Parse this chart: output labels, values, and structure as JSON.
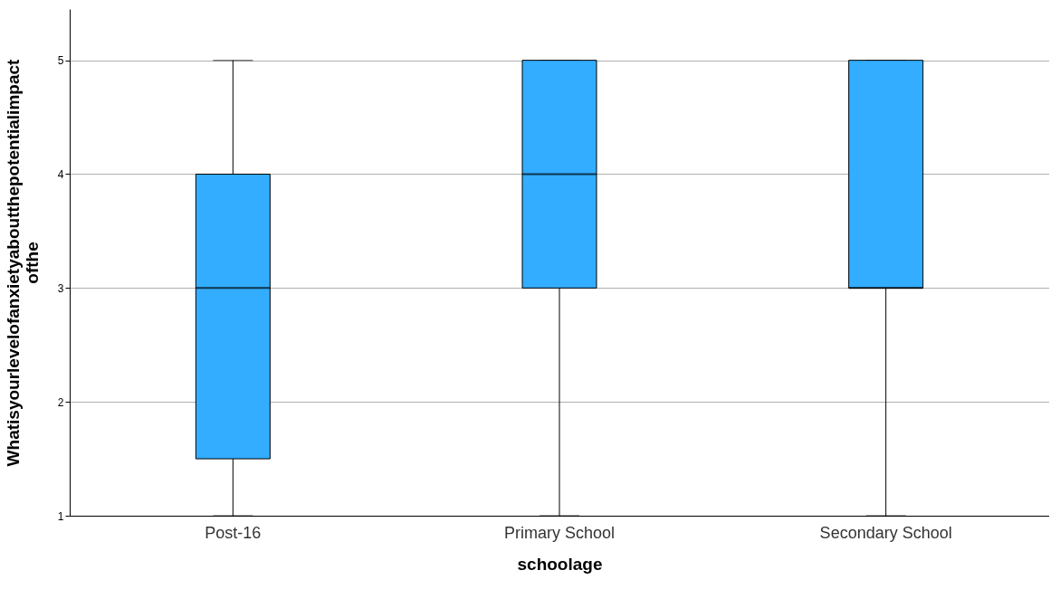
{
  "chart_data": {
    "type": "box",
    "xlabel": "schoolage",
    "ylabel": "Whatisyourlevelofanxietyaboutthepotentialimpact\nofthe",
    "categories": [
      "Post-16",
      "Primary School",
      "Secondary School"
    ],
    "color": "#33adff",
    "boxes": [
      {
        "low": 1,
        "q1": 1.5,
        "median": 3,
        "q3": 4,
        "high": 5
      },
      {
        "low": 1,
        "q1": 3,
        "median": 4,
        "q3": 5,
        "high": 5
      },
      {
        "low": 1,
        "q1": 3,
        "median": 3,
        "q3": 5,
        "high": 5
      }
    ],
    "ylim": [
      1,
      5.45
    ],
    "yticks": [
      1,
      2,
      3,
      4,
      5
    ],
    "grid": "y"
  }
}
